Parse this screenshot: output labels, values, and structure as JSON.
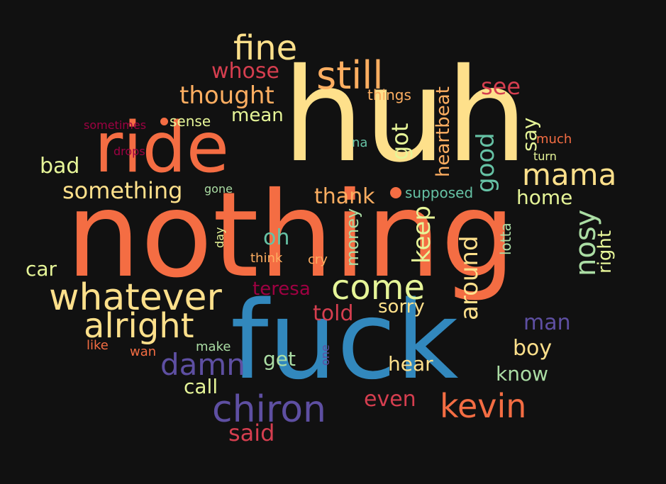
{
  "cloud": {
    "background": "#111111",
    "palette": {
      "yellow": "#FEE08B",
      "orange": "#F46D43",
      "lightorange": "#FDAE61",
      "red": "#D53E4F",
      "darkred": "#9E0142",
      "blue": "#3288BD",
      "purple": "#5E4FA2",
      "teal": "#66C2A5",
      "green": "#ABDDA4",
      "lightgreen": "#E6F598"
    },
    "words": [
      {
        "text": "nothing",
        "color": "#F46D43"
      },
      {
        "text": "huh",
        "color": "#FEE08B"
      },
      {
        "text": "fuck",
        "color": "#3288BD"
      },
      {
        "text": "ride",
        "color": "#F46D43"
      },
      {
        "text": "still",
        "color": "#FDAE61"
      },
      {
        "text": "fine",
        "color": "#FEE08B"
      },
      {
        "text": "whatever",
        "color": "#FEE08B"
      },
      {
        "text": "chiron",
        "color": "#5E4FA2"
      },
      {
        "text": "alright",
        "color": "#FEE08B"
      },
      {
        "text": "come",
        "color": "#E6F598"
      },
      {
        "text": "kevin",
        "color": "#F46D43"
      },
      {
        "text": "mama",
        "color": "#FEE08B"
      },
      {
        "text": "damn",
        "color": "#5E4FA2"
      },
      {
        "text": "nosy",
        "color": "#ABDDA4"
      },
      {
        "text": "thought",
        "color": "#FDAE61"
      },
      {
        "text": "something",
        "color": "#FEE08B"
      },
      {
        "text": "whose",
        "color": "#D53E4F"
      },
      {
        "text": "see",
        "color": "#D53E4F"
      },
      {
        "text": "got",
        "color": "#E6F598"
      },
      {
        "text": "keep",
        "color": "#E6F598"
      },
      {
        "text": "good",
        "color": "#66C2A5"
      },
      {
        "text": "around",
        "color": "#FEE08B"
      },
      {
        "text": "heartbeat",
        "color": "#FDAE61"
      },
      {
        "text": "bad",
        "color": "#E6F598"
      },
      {
        "text": "said",
        "color": "#D53E4F"
      },
      {
        "text": "even",
        "color": "#D53E4F"
      },
      {
        "text": "thank",
        "color": "#FDAE61"
      },
      {
        "text": "boy",
        "color": "#FEE08B"
      },
      {
        "text": "told",
        "color": "#D53E4F"
      },
      {
        "text": "man",
        "color": "#5E4FA2"
      },
      {
        "text": "know",
        "color": "#ABDDA4"
      },
      {
        "text": "hear",
        "color": "#FEE08B"
      },
      {
        "text": "sorry",
        "color": "#FEE08B"
      },
      {
        "text": "home",
        "color": "#E6F598"
      },
      {
        "text": "mean",
        "color": "#E6F598"
      },
      {
        "text": "oh",
        "color": "#66C2A5"
      },
      {
        "text": "say",
        "color": "#E6F598"
      },
      {
        "text": "right",
        "color": "#E6F598"
      },
      {
        "text": "car",
        "color": "#E6F598"
      },
      {
        "text": "call",
        "color": "#E6F598"
      },
      {
        "text": "get",
        "color": "#ABDDA4"
      },
      {
        "text": "teresa",
        "color": "#9E0142"
      },
      {
        "text": "money",
        "color": "#ABDDA4"
      },
      {
        "text": "things",
        "color": "#FDAE61"
      },
      {
        "text": "sense",
        "color": "#E6F598"
      },
      {
        "text": "supposed",
        "color": "#66C2A5"
      },
      {
        "text": "lotta",
        "color": "#ABDDA4"
      },
      {
        "text": "sometimes",
        "color": "#9E0142"
      },
      {
        "text": "drops",
        "color": "#9E0142"
      },
      {
        "text": "na",
        "color": "#66C2A5"
      },
      {
        "text": "gone",
        "color": "#ABDDA4"
      },
      {
        "text": "much",
        "color": "#F46D43"
      },
      {
        "text": "turn",
        "color": "#E6F598"
      },
      {
        "text": "day",
        "color": "#E6F598"
      },
      {
        "text": "think",
        "color": "#FDAE61"
      },
      {
        "text": "cry",
        "color": "#FDAE61"
      },
      {
        "text": "like",
        "color": "#F46D43"
      },
      {
        "text": "wan",
        "color": "#F46D43"
      },
      {
        "text": "make",
        "color": "#ABDDA4"
      },
      {
        "text": "one",
        "color": "#5E4FA2"
      }
    ]
  }
}
